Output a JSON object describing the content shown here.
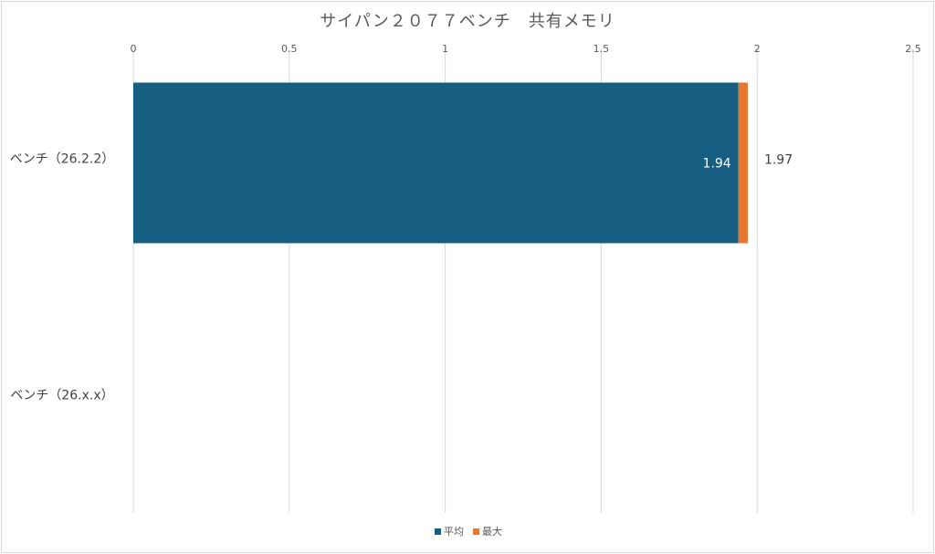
{
  "chart_data": {
    "type": "bar",
    "orientation": "horizontal",
    "stacked": true,
    "title": "サイパン２０７７ベンチ　共有メモリ",
    "categories": [
      "ベンチ（26.2.2）",
      "ベンチ（26.x.x）"
    ],
    "series": [
      {
        "name": "平均",
        "color": "#175f82",
        "values": [
          1.94,
          null
        ],
        "data_labels": [
          "1.94",
          ""
        ]
      },
      {
        "name": "最大",
        "color": "#e8762f",
        "values": [
          0.03,
          null
        ],
        "data_labels": [
          "1.97",
          ""
        ]
      }
    ],
    "xticks": [
      "0",
      "0.5",
      "1",
      "1.5",
      "2",
      "2.5"
    ],
    "xlim": [
      0,
      2.5
    ],
    "xaxis_position": "top",
    "grid": true,
    "legend": "bottom"
  }
}
